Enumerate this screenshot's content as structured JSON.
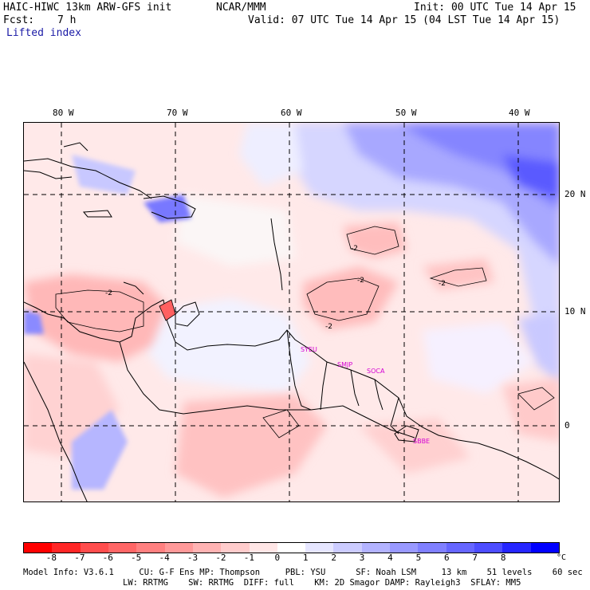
{
  "header": {
    "model_title": "HAIC-HIWC 13km ARW-GFS init",
    "org": "NCAR/MMM",
    "init": "Init: 00 UTC Tue 14 Apr 15",
    "fcst_label": "Fcst:",
    "fcst_value": "7 h",
    "valid": "Valid: 07 UTC Tue 14 Apr 15 (04 LST Tue 14 Apr 15)",
    "field": "Lifted index"
  },
  "map": {
    "lon_labels": [
      "80 W",
      "70 W",
      "60 W",
      "50 W",
      "40 W"
    ],
    "lat_labels": [
      "20 N",
      "10 N",
      "0"
    ],
    "stations": [
      "SYEU",
      "SMJP",
      "SOCA",
      "SBBE"
    ],
    "contour_label": "-2"
  },
  "colorbar": {
    "colors": [
      "#ff0000",
      "#ff2626",
      "#ff4d4d",
      "#ff6666",
      "#ff8080",
      "#ff9999",
      "#ffb3b3",
      "#ffcccc",
      "#ffe6e6",
      "#ffffff",
      "#e6e6ff",
      "#ccccff",
      "#b3b3ff",
      "#9999ff",
      "#8080ff",
      "#6666ff",
      "#4d4dff",
      "#2626ff",
      "#0000ff"
    ],
    "ticks": [
      "-8",
      "-7",
      "-6",
      "-5",
      "-4",
      "-3",
      "-2",
      "-1",
      "0",
      "1",
      "2",
      "3",
      "4",
      "5",
      "6",
      "7",
      "8"
    ],
    "unit": "°C"
  },
  "footer": {
    "line1": "Model Info: V3.6.1     CU: G-F Ens MP: Thompson     PBL: YSU      SF: Noah LSM     13 km    51 levels    60 sec",
    "line2": "LW: RRTMG    SW: RRTMG  DIFF: full    KM: 2D Smagor DAMP: Rayleigh3  SFLAY: MM5"
  }
}
